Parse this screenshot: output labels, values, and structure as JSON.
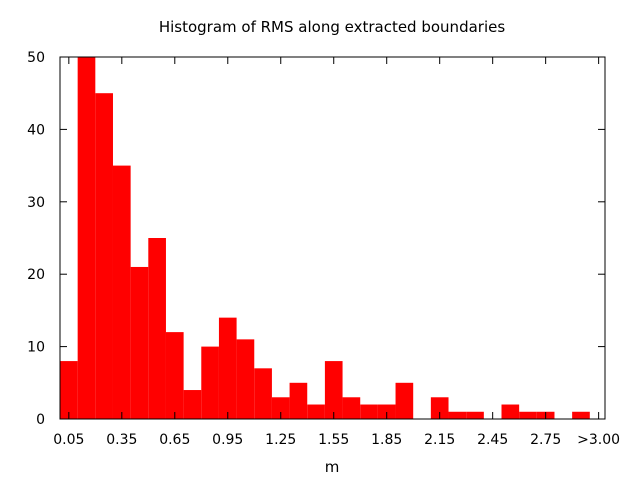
{
  "chart_data": {
    "type": "bar",
    "title": "Histogram of RMS along extracted boundaries",
    "xlabel": "m",
    "ylabel": "",
    "ylim": [
      0,
      50
    ],
    "yticks": [
      0,
      10,
      20,
      30,
      40,
      50
    ],
    "grid": false,
    "legend": "none",
    "bar_color": "#ff0000",
    "x_tick_labels": [
      "0.05",
      "0.35",
      "0.65",
      "0.95",
      "1.25",
      "1.55",
      "1.85",
      "2.15",
      "2.45",
      "2.75",
      ">3.00"
    ],
    "categories": [
      "0.05",
      "0.15",
      "0.25",
      "0.35",
      "0.45",
      "0.55",
      "0.65",
      "0.75",
      "0.85",
      "0.95",
      "1.05",
      "1.15",
      "1.25",
      "1.35",
      "1.45",
      "1.55",
      "1.65",
      "1.75",
      "1.85",
      "1.95",
      "2.05",
      "2.15",
      "2.25",
      "2.35",
      "2.45",
      "2.55",
      "2.65",
      "2.75",
      "2.85",
      "2.95",
      ">3.00"
    ],
    "values": [
      8,
      50,
      45,
      35,
      21,
      25,
      12,
      4,
      10,
      14,
      11,
      7,
      3,
      5,
      2,
      8,
      3,
      2,
      2,
      5,
      0,
      3,
      1,
      1,
      0,
      2,
      1,
      1,
      0,
      1,
      0
    ]
  }
}
